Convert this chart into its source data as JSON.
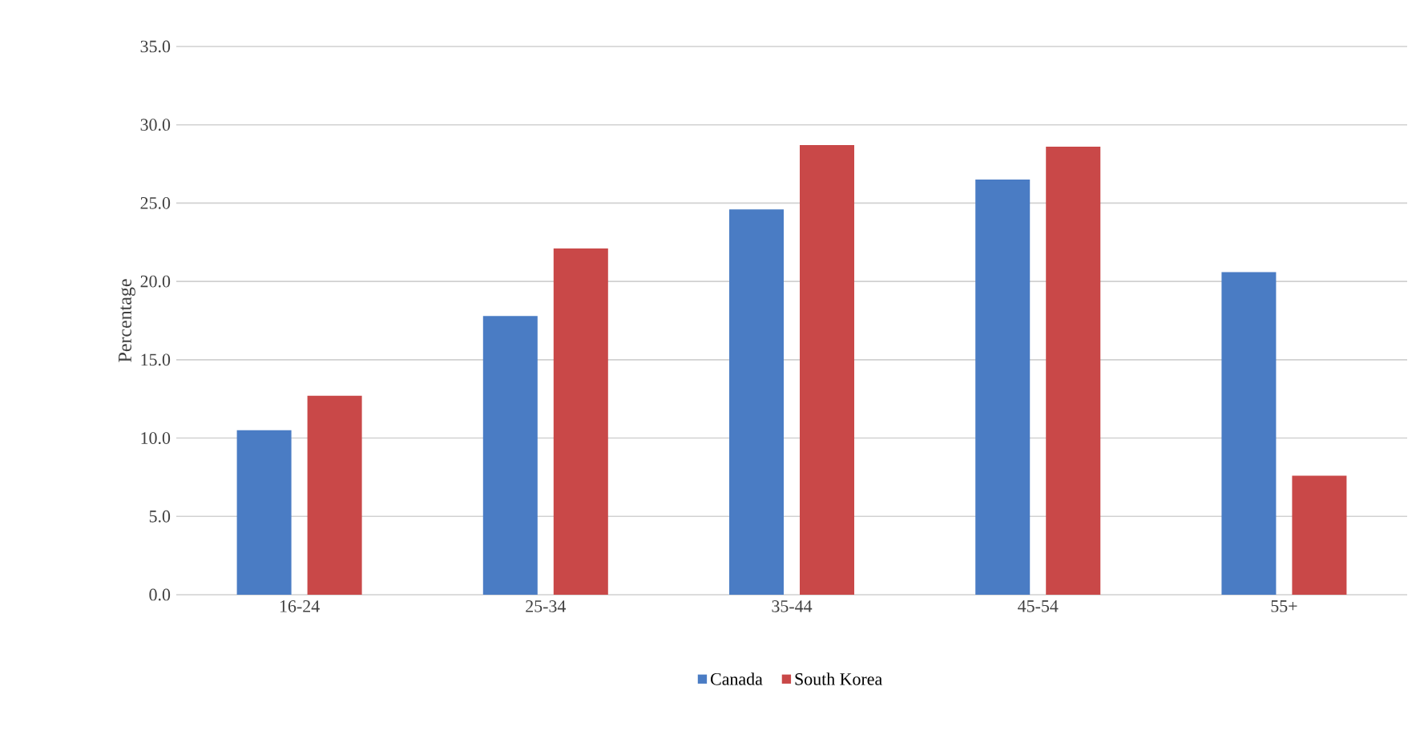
{
  "chart_data": {
    "type": "bar",
    "ylabel": "Percentage",
    "categories": [
      "16-24",
      "25-34",
      "35-44",
      "45-54",
      "55+"
    ],
    "series": [
      {
        "name": "Canada",
        "color": "#4a7cc4",
        "values": [
          10.5,
          17.8,
          24.6,
          26.5,
          20.6
        ]
      },
      {
        "name": "South Korea",
        "color": "#c94848",
        "values": [
          12.7,
          22.1,
          28.7,
          28.6,
          7.6
        ]
      }
    ],
    "ylim": [
      0,
      35
    ],
    "yticks": [
      {
        "value": 0,
        "label": "0.0"
      },
      {
        "value": 5,
        "label": "5.0"
      },
      {
        "value": 10,
        "label": "10.0"
      },
      {
        "value": 15,
        "label": "15.0"
      },
      {
        "value": 20,
        "label": "20.0"
      },
      {
        "value": 25,
        "label": "25.0"
      },
      {
        "value": 30,
        "label": "30.0"
      },
      {
        "value": 35,
        "label": "35.0"
      }
    ],
    "grid": "y",
    "legend": "bottom"
  }
}
